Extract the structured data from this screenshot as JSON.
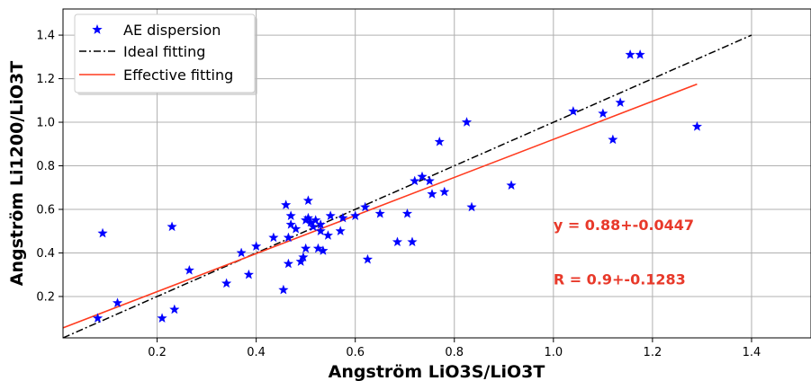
{
  "chart_data": {
    "type": "scatter",
    "xlabel": "Angström LiO3S/LiO3T",
    "ylabel": "Angström Li1200/LiO3T",
    "xlim": [
      0.01,
      1.52
    ],
    "ylim": [
      0.01,
      1.52
    ],
    "xticks": [
      "0.2",
      "0.4",
      "0.6",
      "0.8",
      "1.0",
      "1.2",
      "1.4"
    ],
    "yticks": [
      "0.2",
      "0.4",
      "0.6",
      "0.8",
      "1.0",
      "1.2",
      "1.4"
    ],
    "grid": true,
    "legend_position": "top-left",
    "series": [
      {
        "name": "AE dispersion",
        "kind": "scatter",
        "color": "#0000ff",
        "marker": "star",
        "points": [
          [
            0.08,
            0.1
          ],
          [
            0.09,
            0.49
          ],
          [
            0.12,
            0.17
          ],
          [
            0.21,
            0.1
          ],
          [
            0.23,
            0.52
          ],
          [
            0.235,
            0.14
          ],
          [
            0.265,
            0.32
          ],
          [
            0.34,
            0.26
          ],
          [
            0.37,
            0.4
          ],
          [
            0.385,
            0.3
          ],
          [
            0.4,
            0.43
          ],
          [
            0.435,
            0.47
          ],
          [
            0.455,
            0.23
          ],
          [
            0.46,
            0.62
          ],
          [
            0.465,
            0.35
          ],
          [
            0.465,
            0.47
          ],
          [
            0.47,
            0.57
          ],
          [
            0.47,
            0.53
          ],
          [
            0.48,
            0.51
          ],
          [
            0.49,
            0.36
          ],
          [
            0.495,
            0.38
          ],
          [
            0.5,
            0.55
          ],
          [
            0.5,
            0.42
          ],
          [
            0.505,
            0.64
          ],
          [
            0.505,
            0.56
          ],
          [
            0.51,
            0.54
          ],
          [
            0.515,
            0.52
          ],
          [
            0.52,
            0.55
          ],
          [
            0.525,
            0.42
          ],
          [
            0.53,
            0.5
          ],
          [
            0.53,
            0.53
          ],
          [
            0.535,
            0.41
          ],
          [
            0.545,
            0.48
          ],
          [
            0.55,
            0.57
          ],
          [
            0.57,
            0.5
          ],
          [
            0.575,
            0.56
          ],
          [
            0.6,
            0.57
          ],
          [
            0.62,
            0.61
          ],
          [
            0.625,
            0.37
          ],
          [
            0.65,
            0.58
          ],
          [
            0.685,
            0.45
          ],
          [
            0.705,
            0.58
          ],
          [
            0.715,
            0.45
          ],
          [
            0.72,
            0.73
          ],
          [
            0.735,
            0.75
          ],
          [
            0.75,
            0.73
          ],
          [
            0.755,
            0.67
          ],
          [
            0.77,
            0.91
          ],
          [
            0.78,
            0.68
          ],
          [
            0.825,
            1.0
          ],
          [
            0.835,
            0.61
          ],
          [
            0.915,
            0.71
          ],
          [
            1.04,
            1.05
          ],
          [
            1.1,
            1.04
          ],
          [
            1.12,
            0.92
          ],
          [
            1.135,
            1.09
          ],
          [
            1.155,
            1.31
          ],
          [
            1.175,
            1.31
          ],
          [
            1.29,
            0.98
          ]
        ]
      },
      {
        "name": "Ideal fitting",
        "kind": "line",
        "color": "#000000",
        "dash": "dashdot",
        "x": [
          0.01,
          1.4
        ],
        "y": [
          0.01,
          1.4
        ]
      },
      {
        "name": "Effective fitting",
        "kind": "line",
        "color": "#ff3b1f",
        "dash": "solid",
        "x": [
          0.01,
          1.29
        ],
        "y": [
          0.056,
          1.175
        ]
      }
    ],
    "annotations": [
      {
        "text": "y = 0.88+-0.0447",
        "x": 1.0,
        "y": 0.505,
        "color": "#e8392a"
      },
      {
        "text": "R = 0.9+-0.1283",
        "x": 1.0,
        "y": 0.255,
        "color": "#e8392a"
      }
    ]
  }
}
